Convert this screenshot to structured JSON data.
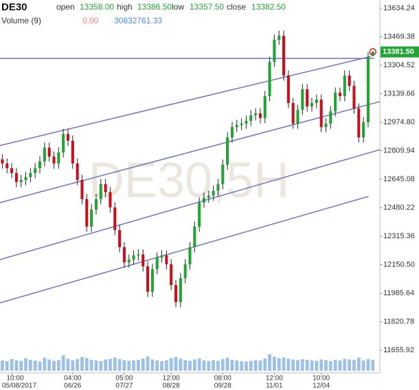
{
  "chart_data": {
    "type": "candlestick",
    "symbol": "DE30",
    "watermark": "DE30,5H",
    "header": {
      "fields": [
        {
          "name": "open",
          "value": 13358,
          "label": "13358.00"
        },
        {
          "name": "high",
          "value": 13386.5,
          "label": "13386.50"
        },
        {
          "name": "low",
          "value": 13357.5,
          "label": "13357.50"
        },
        {
          "name": "close",
          "value": 13382.5,
          "label": "13382.50"
        }
      ],
      "volume_title": "Volume (9)",
      "volume_values": [
        {
          "value": 0,
          "label": "0.00",
          "color": "#f08080"
        },
        {
          "value": 30832761.33,
          "label": "30832761.33",
          "color": "#4a8ad4"
        }
      ]
    },
    "up_color": "#22a336",
    "down_color": "#c8101e",
    "line_color": "#7a7ac0",
    "open": [
      12760,
      12736,
      12709,
      12681,
      12629,
      12641,
      12657,
      12681,
      12709,
      12748,
      12828,
      12776,
      12736,
      12800,
      12907,
      12868,
      12736,
      12641,
      12530,
      12371,
      12470,
      12530,
      12617,
      12570,
      12482,
      12351,
      12252,
      12164,
      12180,
      12204,
      12210,
      12141,
      11994,
      12125,
      12192,
      12204,
      12153,
      12033,
      11934,
      12073,
      12153,
      12252,
      12371,
      12510,
      12538,
      12550,
      12578,
      12617,
      12729,
      12887,
      12947,
      12959,
      12967,
      12983,
      13015,
      13026,
      12999,
      13126,
      13324,
      13452,
      13475,
      13245,
      13086,
      12967,
      13046,
      13166,
      13066,
      13086,
      13106,
      12947,
      12967,
      13038,
      13146,
      13126,
      13245,
      13185,
      13054,
      12887,
      12975,
      13358
    ],
    "high": [
      12790,
      12766,
      12739,
      12711,
      12671,
      12687,
      12711,
      12739,
      12778,
      12858,
      12858,
      12806,
      12830,
      12937,
      12937,
      12898,
      12766,
      12671,
      12560,
      12500,
      12560,
      12647,
      12647,
      12600,
      12512,
      12381,
      12282,
      12210,
      12234,
      12240,
      12240,
      12171,
      12155,
      12222,
      12234,
      12234,
      12183,
      12063,
      12103,
      12183,
      12282,
      12401,
      12540,
      12568,
      12580,
      12608,
      12647,
      12759,
      12917,
      12977,
      12989,
      12997,
      13013,
      13045,
      13056,
      13056,
      13156,
      13354,
      13482,
      13505,
      13505,
      13275,
      13116,
      13076,
      13196,
      13196,
      13116,
      13136,
      13136,
      12997,
      13068,
      13176,
      13176,
      13275,
      13275,
      13215,
      13084,
      13005,
      13380,
      13386.5
    ],
    "low": [
      12706,
      12679,
      12651,
      12599,
      12599,
      12611,
      12627,
      12651,
      12679,
      12718,
      12746,
      12706,
      12706,
      12770,
      12838,
      12706,
      12611,
      12500,
      12341,
      12341,
      12440,
      12500,
      12540,
      12452,
      12321,
      12222,
      12134,
      12134,
      12150,
      12174,
      12111,
      11964,
      11964,
      12095,
      12162,
      12123,
      12003,
      11904,
      11904,
      12043,
      12123,
      12222,
      12341,
      12480,
      12508,
      12520,
      12548,
      12587,
      12699,
      12857,
      12917,
      12929,
      12937,
      12953,
      12985,
      12969,
      12969,
      13096,
      13294,
      13422,
      13215,
      13056,
      12937,
      12937,
      13016,
      13036,
      13036,
      13056,
      12917,
      12917,
      12937,
      13008,
      13096,
      13096,
      13155,
      13024,
      12857,
      12857,
      12945,
      13357.5
    ],
    "close": [
      12736,
      12709,
      12681,
      12629,
      12641,
      12657,
      12681,
      12709,
      12748,
      12828,
      12776,
      12736,
      12800,
      12907,
      12868,
      12736,
      12641,
      12530,
      12371,
      12470,
      12530,
      12617,
      12570,
      12482,
      12351,
      12252,
      12164,
      12180,
      12204,
      12210,
      12141,
      11994,
      12125,
      12192,
      12204,
      12153,
      12033,
      11934,
      12073,
      12153,
      12252,
      12371,
      12510,
      12538,
      12550,
      12578,
      12617,
      12729,
      12887,
      12947,
      12959,
      12967,
      12983,
      13015,
      13026,
      12999,
      13126,
      13324,
      13452,
      13475,
      13245,
      13086,
      12967,
      13046,
      13166,
      13066,
      13086,
      13106,
      12947,
      12967,
      13038,
      13146,
      13126,
      13245,
      13185,
      13054,
      12887,
      12975,
      13350,
      13382.5
    ],
    "volume": [
      30000000,
      28000000,
      34000000,
      31000000,
      29000000,
      36000000,
      32000000,
      30000000,
      27000000,
      38000000,
      33000000,
      29000000,
      31000000,
      45000000,
      35000000,
      30000000,
      34000000,
      40000000,
      37000000,
      32000000,
      30000000,
      28000000,
      33000000,
      35000000,
      39000000,
      34000000,
      31000000,
      29000000,
      30000000,
      32000000,
      36000000,
      42000000,
      33000000,
      30000000,
      28000000,
      31000000,
      37000000,
      40000000,
      35000000,
      31000000,
      29000000,
      33000000,
      36000000,
      30000000,
      28000000,
      31000000,
      29000000,
      34000000,
      38000000,
      32000000,
      30000000,
      28000000,
      27000000,
      29000000,
      31000000,
      30000000,
      36000000,
      48000000,
      41000000,
      37000000,
      39000000,
      35000000,
      33000000,
      31000000,
      34000000,
      32000000,
      30000000,
      29000000,
      33000000,
      31000000,
      28000000,
      32000000,
      30000000,
      35000000,
      33000000,
      31000000,
      38000000,
      30000000,
      34000000,
      32000000
    ],
    "volume_lim": [
      0,
      120000000
    ],
    "xlim": [
      -0.5,
      80.5
    ],
    "ylim": [
      11537,
      13682
    ],
    "yticks": [
      13634.24,
      13469.38,
      13304.52,
      13139.66,
      {
        "value": 12974.8,
        "label": "12974.80"
      },
      12809.94,
      12645.08,
      12480.22,
      12315.36,
      {
        "value": 12150.5,
        "label": "12150.50"
      },
      11985.64,
      11820.78,
      11655.92
    ],
    "xticks": [
      {
        "value": 2,
        "label": "10:00",
        "date": "05/08/2017"
      },
      {
        "value": 15,
        "label": "04:00",
        "date": "06/26"
      },
      {
        "value": 26,
        "label": "05:00",
        "date": "07/27"
      },
      {
        "value": 36,
        "label": "12:00",
        "date": "08/28"
      },
      {
        "value": 47,
        "label": "08:00",
        "date": "09/28"
      },
      {
        "value": 58,
        "label": "12:00",
        "date": "11/01"
      },
      {
        "value": 68,
        "label": "10:00",
        "date": "12/04"
      }
    ],
    "trend_lines": [
      {
        "x": [
          -0.5,
          79.3
        ],
        "y": [
          13344,
          13344
        ]
      },
      {
        "x": [
          -0.5,
          78.6
        ],
        "y": [
          12840,
          13356
        ]
      },
      {
        "x": [
          -0.5,
          80.5
        ],
        "y": [
          12510,
          13094
        ]
      },
      {
        "x": [
          -0.5,
          80.5
        ],
        "y": [
          12180,
          12816
        ]
      },
      {
        "x": [
          -0.5,
          78.1
        ],
        "y": [
          11930,
          12546
        ]
      }
    ],
    "last_price": {
      "value": 13381.5,
      "label": "13381.50"
    }
  }
}
